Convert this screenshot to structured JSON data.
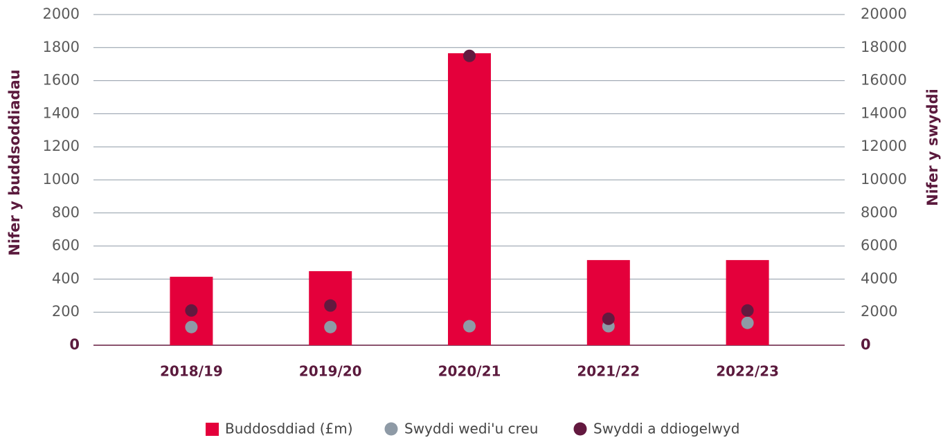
{
  "chart_data": {
    "type": "bar",
    "categories": [
      "2018/19",
      "2019/20",
      "2020/21",
      "2021/22",
      "2022/23"
    ],
    "ylabel": "Nifer y buddsoddiadau",
    "y2label": "Nifer y swyddi",
    "ylim": [
      0,
      2000
    ],
    "yticks": [
      0,
      200,
      400,
      600,
      800,
      1000,
      1200,
      1400,
      1600,
      1800,
      2000
    ],
    "y2lim": [
      0,
      20000
    ],
    "y2ticks": [
      0,
      2000,
      4000,
      6000,
      8000,
      10000,
      12000,
      14000,
      16000,
      18000,
      20000
    ],
    "grid": true,
    "legend": "bottom",
    "series": [
      {
        "name": "Buddosddiad (£m)",
        "type": "bar",
        "color": "#e4003b",
        "values": [
          414,
          448,
          1766,
          515,
          515
        ]
      },
      {
        "name": "Swyddi wedi'u creu",
        "type": "scatter",
        "axis": "y2",
        "color": "#8e9aa6",
        "values": [
          1100,
          1100,
          1150,
          1150,
          1350
        ]
      },
      {
        "name": "Swyddi a ddiogelwyd",
        "type": "scatter",
        "axis": "y2",
        "color": "#63193f",
        "values": [
          2100,
          2400,
          17500,
          1600,
          2100
        ]
      }
    ]
  }
}
